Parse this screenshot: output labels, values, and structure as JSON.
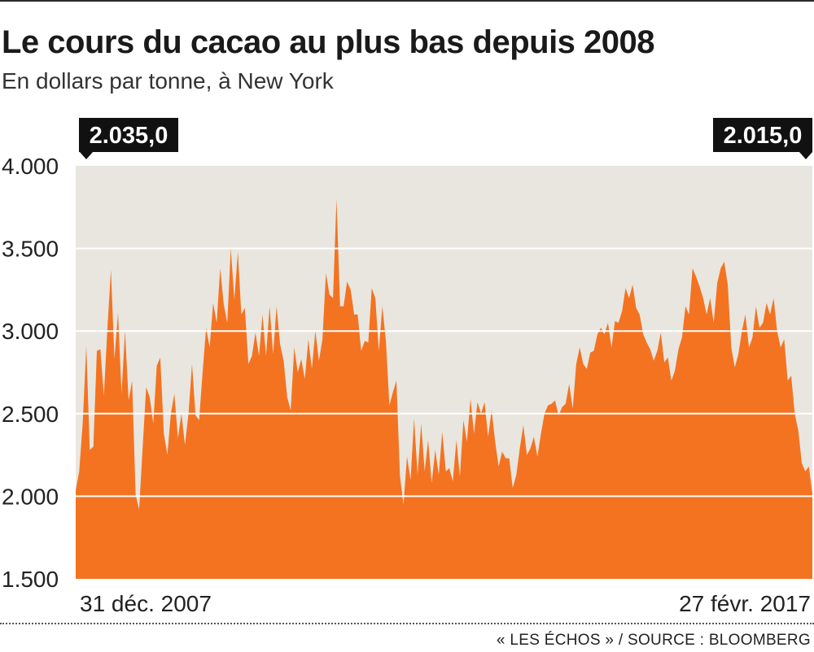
{
  "title": "Le cours du cacao au plus bas depuis 2008",
  "subtitle": "En dollars par tonne, à New York",
  "source": "« LES ÉCHOS » / SOURCE : BLOOMBERG",
  "colors": {
    "area": "#f47321",
    "plot_background": "#e8e6df",
    "gridline": "#ffffff",
    "callout_background": "#111111",
    "callout_text": "#ffffff"
  },
  "chart_data": {
    "type": "area",
    "title": "Le cours du cacao au plus bas depuis 2008",
    "subtitle": "En dollars par tonne, à New York",
    "ylim": [
      1500,
      4000
    ],
    "yticks": [
      {
        "value": 4000,
        "label": "4.000"
      },
      {
        "value": 3500,
        "label": "3.500"
      },
      {
        "value": 3000,
        "label": "3.000"
      },
      {
        "value": 2500,
        "label": "2.500"
      },
      {
        "value": 2000,
        "label": "2.000"
      },
      {
        "value": 1500,
        "label": "1.500"
      }
    ],
    "x_start_label": "31 déc. 2007",
    "x_end_label": "27 févr. 2017",
    "callouts": [
      {
        "position": "start",
        "label": "2.035,0",
        "value": 2035.0
      },
      {
        "position": "end",
        "label": "2.015,0",
        "value": 2015.0
      }
    ],
    "grid": true,
    "legend": "none",
    "values": [
      2035,
      2150,
      2450,
      2910,
      2280,
      2300,
      2880,
      2890,
      2610,
      3020,
      3370,
      2830,
      3110,
      2620,
      3000,
      2580,
      2700,
      2010,
      1920,
      2300,
      2660,
      2600,
      2440,
      2790,
      2840,
      2380,
      2250,
      2500,
      2620,
      2350,
      2500,
      2310,
      2500,
      2800,
      2490,
      2460,
      2750,
      3020,
      2900,
      3170,
      3050,
      3380,
      3160,
      3050,
      3500,
      3190,
      3480,
      3100,
      3140,
      2800,
      2850,
      2990,
      2850,
      3100,
      2850,
      3150,
      2860,
      3150,
      2920,
      2820,
      2600,
      2520,
      2900,
      2750,
      2830,
      2710,
      2950,
      2770,
      3000,
      2820,
      2950,
      3350,
      3220,
      3200,
      3800,
      3150,
      3150,
      3300,
      3250,
      3100,
      3100,
      2880,
      2940,
      2930,
      3260,
      3200,
      2880,
      3150,
      2940,
      2550,
      2630,
      2700,
      2120,
      1950,
      2240,
      2100,
      2470,
      2130,
      2440,
      2150,
      2340,
      2080,
      2280,
      2130,
      2390,
      2150,
      2170,
      2090,
      2340,
      2120,
      2460,
      2330,
      2590,
      2380,
      2570,
      2500,
      2570,
      2360,
      2520,
      2330,
      2180,
      2270,
      2230,
      2230,
      2050,
      2130,
      2290,
      2430,
      2250,
      2290,
      2360,
      2240,
      2380,
      2500,
      2550,
      2560,
      2580,
      2490,
      2540,
      2560,
      2680,
      2530,
      2800,
      2900,
      2800,
      2770,
      2870,
      2880,
      2980,
      3020,
      2980,
      3050,
      2900,
      3060,
      3050,
      3120,
      3260,
      3200,
      3280,
      3140,
      3100,
      2980,
      2930,
      2890,
      2820,
      2880,
      2990,
      2810,
      2840,
      2700,
      2760,
      2890,
      2960,
      3150,
      3100,
      3380,
      3330,
      3270,
      3200,
      3100,
      3200,
      3050,
      3290,
      3380,
      3420,
      3280,
      2900,
      2780,
      2860,
      3000,
      3100,
      2900,
      2960,
      3150,
      3020,
      3050,
      3170,
      3100,
      3200,
      3000,
      2900,
      2950,
      2700,
      2730,
      2500,
      2400,
      2200,
      2150,
      2180,
      2015
    ],
    "values_note": ""
  }
}
